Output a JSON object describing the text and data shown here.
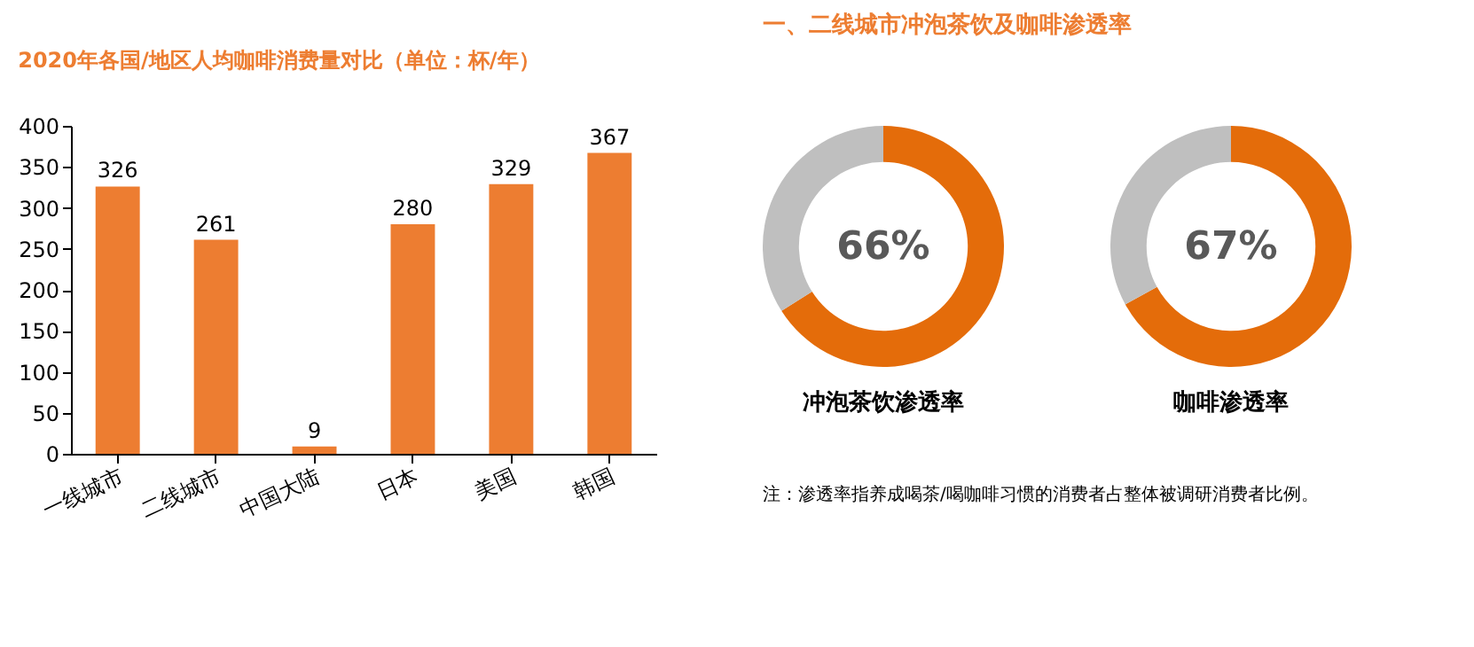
{
  "chart_data": [
    {
      "type": "bar",
      "title": "2020年各国/地区人均咖啡消费量对比（单位：杯/年）",
      "categories": [
        "一线城市",
        "二线城市",
        "中国大陆",
        "日本",
        "美国",
        "韩国"
      ],
      "values": [
        326,
        261,
        9,
        280,
        329,
        367
      ],
      "color": "#ed7d31",
      "ylim": [
        0,
        400
      ],
      "yticks": [
        0,
        50,
        100,
        150,
        200,
        250,
        300,
        350,
        400
      ],
      "data_labels": true
    },
    {
      "type": "donut",
      "title": "一、二线城市冲泡茶饮及咖啡渗透率",
      "categories": [
        "冲泡茶饮渗透率",
        null
      ],
      "values": [
        66,
        34
      ],
      "colors": [
        "#e46c0a",
        "#bfbfbf"
      ],
      "value_labels": [
        "66%",
        null
      ]
    },
    {
      "type": "donut",
      "categories": [
        "咖啡渗透率",
        null
      ],
      "values": [
        67,
        33
      ],
      "colors": [
        "#e46c0a",
        "#bfbfbf"
      ],
      "value_labels": [
        "67%",
        null
      ],
      "annotations": [
        "注：渗透率指养成喝茶/喝咖啡习惯的消费者占整体被调研消费者比例。"
      ]
    }
  ]
}
